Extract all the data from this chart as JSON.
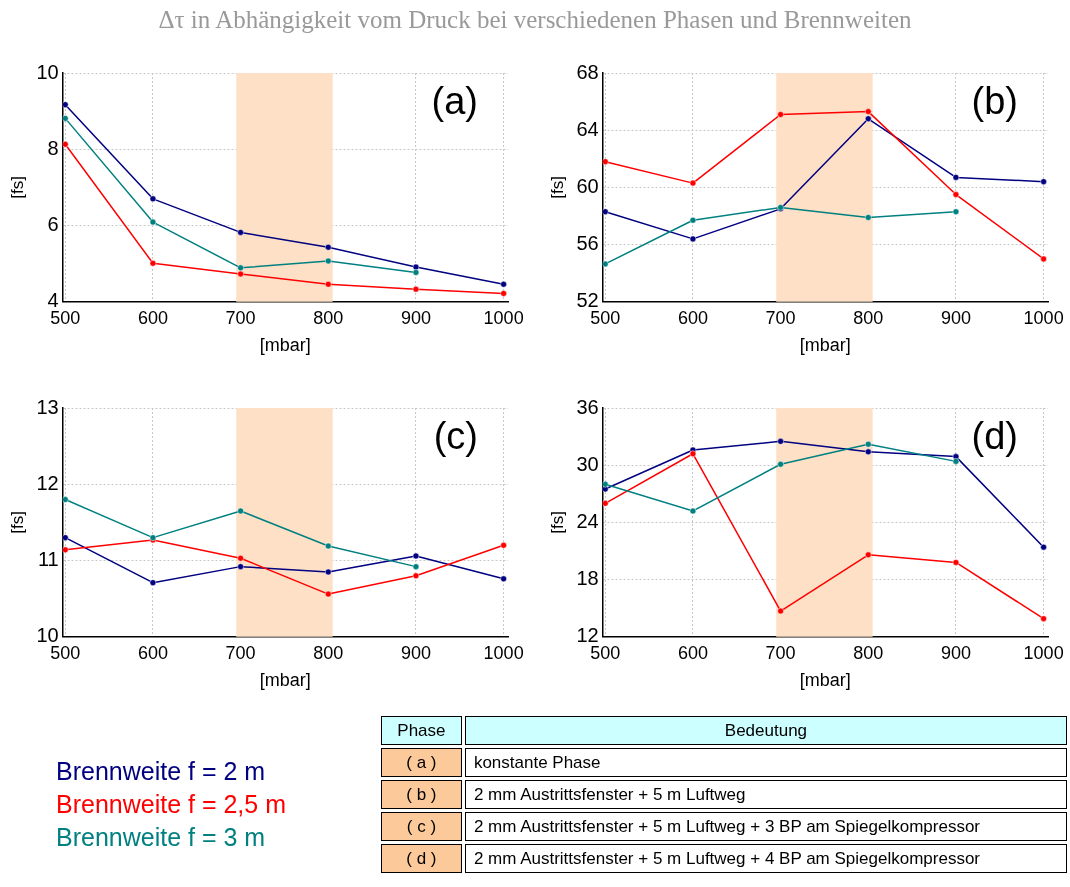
{
  "chart_data": [
    {
      "type": "line",
      "title": "Δτ in Abhängigkeit vom Druck bei verschiedenen Phasen und Brennweiten",
      "xlabel": "[mbar]",
      "ylabel": "[fs]",
      "annotations": [
        "(a)"
      ],
      "x": [
        500,
        600,
        700,
        800,
        900,
        1000
      ],
      "xlim": [
        497,
        1005
      ],
      "xticks": [
        500,
        600,
        700,
        800,
        900,
        1000
      ],
      "ylim": [
        4,
        10
      ],
      "yticks": [
        4,
        6,
        8,
        10
      ],
      "grid": true,
      "marker": "circle",
      "legend": "bottom left",
      "bands": [
        {
          "axis": "x",
          "from": 695,
          "to": 805,
          "color": "#fde0c5"
        }
      ],
      "series": [
        {
          "name": "Brennweite f = 2 m",
          "color": "#000080",
          "values": [
            9.17,
            6.7,
            5.82,
            5.43,
            4.91,
            4.46
          ]
        },
        {
          "name": "Brennweite f = 2,5 m",
          "color": "#ff0000",
          "values": [
            8.13,
            5.01,
            4.73,
            4.46,
            4.33,
            4.22
          ]
        },
        {
          "name": "Brennweite f = 3 m",
          "color": "#008080",
          "values": [
            8.81,
            6.09,
            4.89,
            5.07,
            4.77,
            null
          ]
        }
      ]
    },
    {
      "type": "line",
      "xlabel": "[mbar]",
      "ylabel": "[fs]",
      "annotations": [
        "(b)"
      ],
      "x": [
        500,
        600,
        700,
        800,
        900,
        1000
      ],
      "xlim": [
        497,
        1005
      ],
      "xticks": [
        500,
        600,
        700,
        800,
        900,
        1000
      ],
      "ylim": [
        52,
        68
      ],
      "yticks": [
        52,
        56,
        60,
        64,
        68
      ],
      "grid": true,
      "marker": "circle",
      "bands": [
        {
          "axis": "x",
          "from": 695,
          "to": 805,
          "color": "#fde0c5"
        }
      ],
      "series": [
        {
          "color": "#000080",
          "values": [
            58.3,
            56.4,
            58.5,
            64.8,
            60.7,
            60.4
          ]
        },
        {
          "color": "#ff0000",
          "values": [
            61.8,
            60.3,
            65.1,
            65.3,
            59.5,
            55.0
          ]
        },
        {
          "color": "#008080",
          "values": [
            54.65,
            57.7,
            58.6,
            57.9,
            58.3,
            null
          ]
        }
      ]
    },
    {
      "type": "line",
      "xlabel": "[mbar]",
      "ylabel": "[fs]",
      "annotations": [
        "(c)"
      ],
      "x": [
        500,
        600,
        700,
        800,
        900,
        1000
      ],
      "xlim": [
        497,
        1005
      ],
      "xticks": [
        500,
        600,
        700,
        800,
        900,
        1000
      ],
      "ylim": [
        10,
        13
      ],
      "yticks": [
        10,
        11,
        12,
        13
      ],
      "grid": true,
      "marker": "circle",
      "bands": [
        {
          "axis": "x",
          "from": 695,
          "to": 805,
          "color": "#fde0c5"
        }
      ],
      "series": [
        {
          "color": "#000080",
          "values": [
            11.3,
            10.71,
            10.92,
            10.85,
            11.06,
            10.76
          ]
        },
        {
          "color": "#ff0000",
          "values": [
            11.14,
            11.27,
            11.03,
            10.56,
            10.8,
            11.2
          ]
        },
        {
          "color": "#008080",
          "values": [
            11.8,
            11.3,
            11.65,
            11.19,
            10.92,
            null
          ]
        }
      ]
    },
    {
      "type": "line",
      "xlabel": "[mbar]",
      "ylabel": "[fs]",
      "annotations": [
        "(d)"
      ],
      "x": [
        500,
        600,
        700,
        800,
        900,
        1000
      ],
      "xlim": [
        497,
        1005
      ],
      "xticks": [
        500,
        600,
        700,
        800,
        900,
        1000
      ],
      "ylim": [
        12,
        36
      ],
      "yticks": [
        12,
        18,
        24,
        30,
        36
      ],
      "grid": true,
      "marker": "circle",
      "bands": [
        {
          "axis": "x",
          "from": 695,
          "to": 805,
          "color": "#fde0c5"
        }
      ],
      "series": [
        {
          "color": "#000080",
          "values": [
            27.5,
            31.6,
            32.5,
            31.4,
            30.9,
            21.4
          ]
        },
        {
          "color": "#ff0000",
          "values": [
            26.0,
            31.2,
            14.7,
            20.6,
            19.8,
            13.9
          ]
        },
        {
          "color": "#008080",
          "values": [
            28.0,
            25.2,
            30.1,
            32.2,
            30.4,
            null
          ]
        }
      ]
    },
    {
      "type": "other",
      "annotations": [
        "Phase",
        "Bedeutung",
        "( a )",
        "konstante Phase",
        "( b )",
        "2 mm Austrittsfenster + 5 m Luftweg",
        "( c )",
        "2 mm Austrittsfenster + 5 m Luftweg + 3 BP am Spiegelkompressor",
        "( d )",
        "2 mm Austrittsfenster + 5 m Luftweg + 4 BP am Spiegelkompressor"
      ]
    }
  ]
}
